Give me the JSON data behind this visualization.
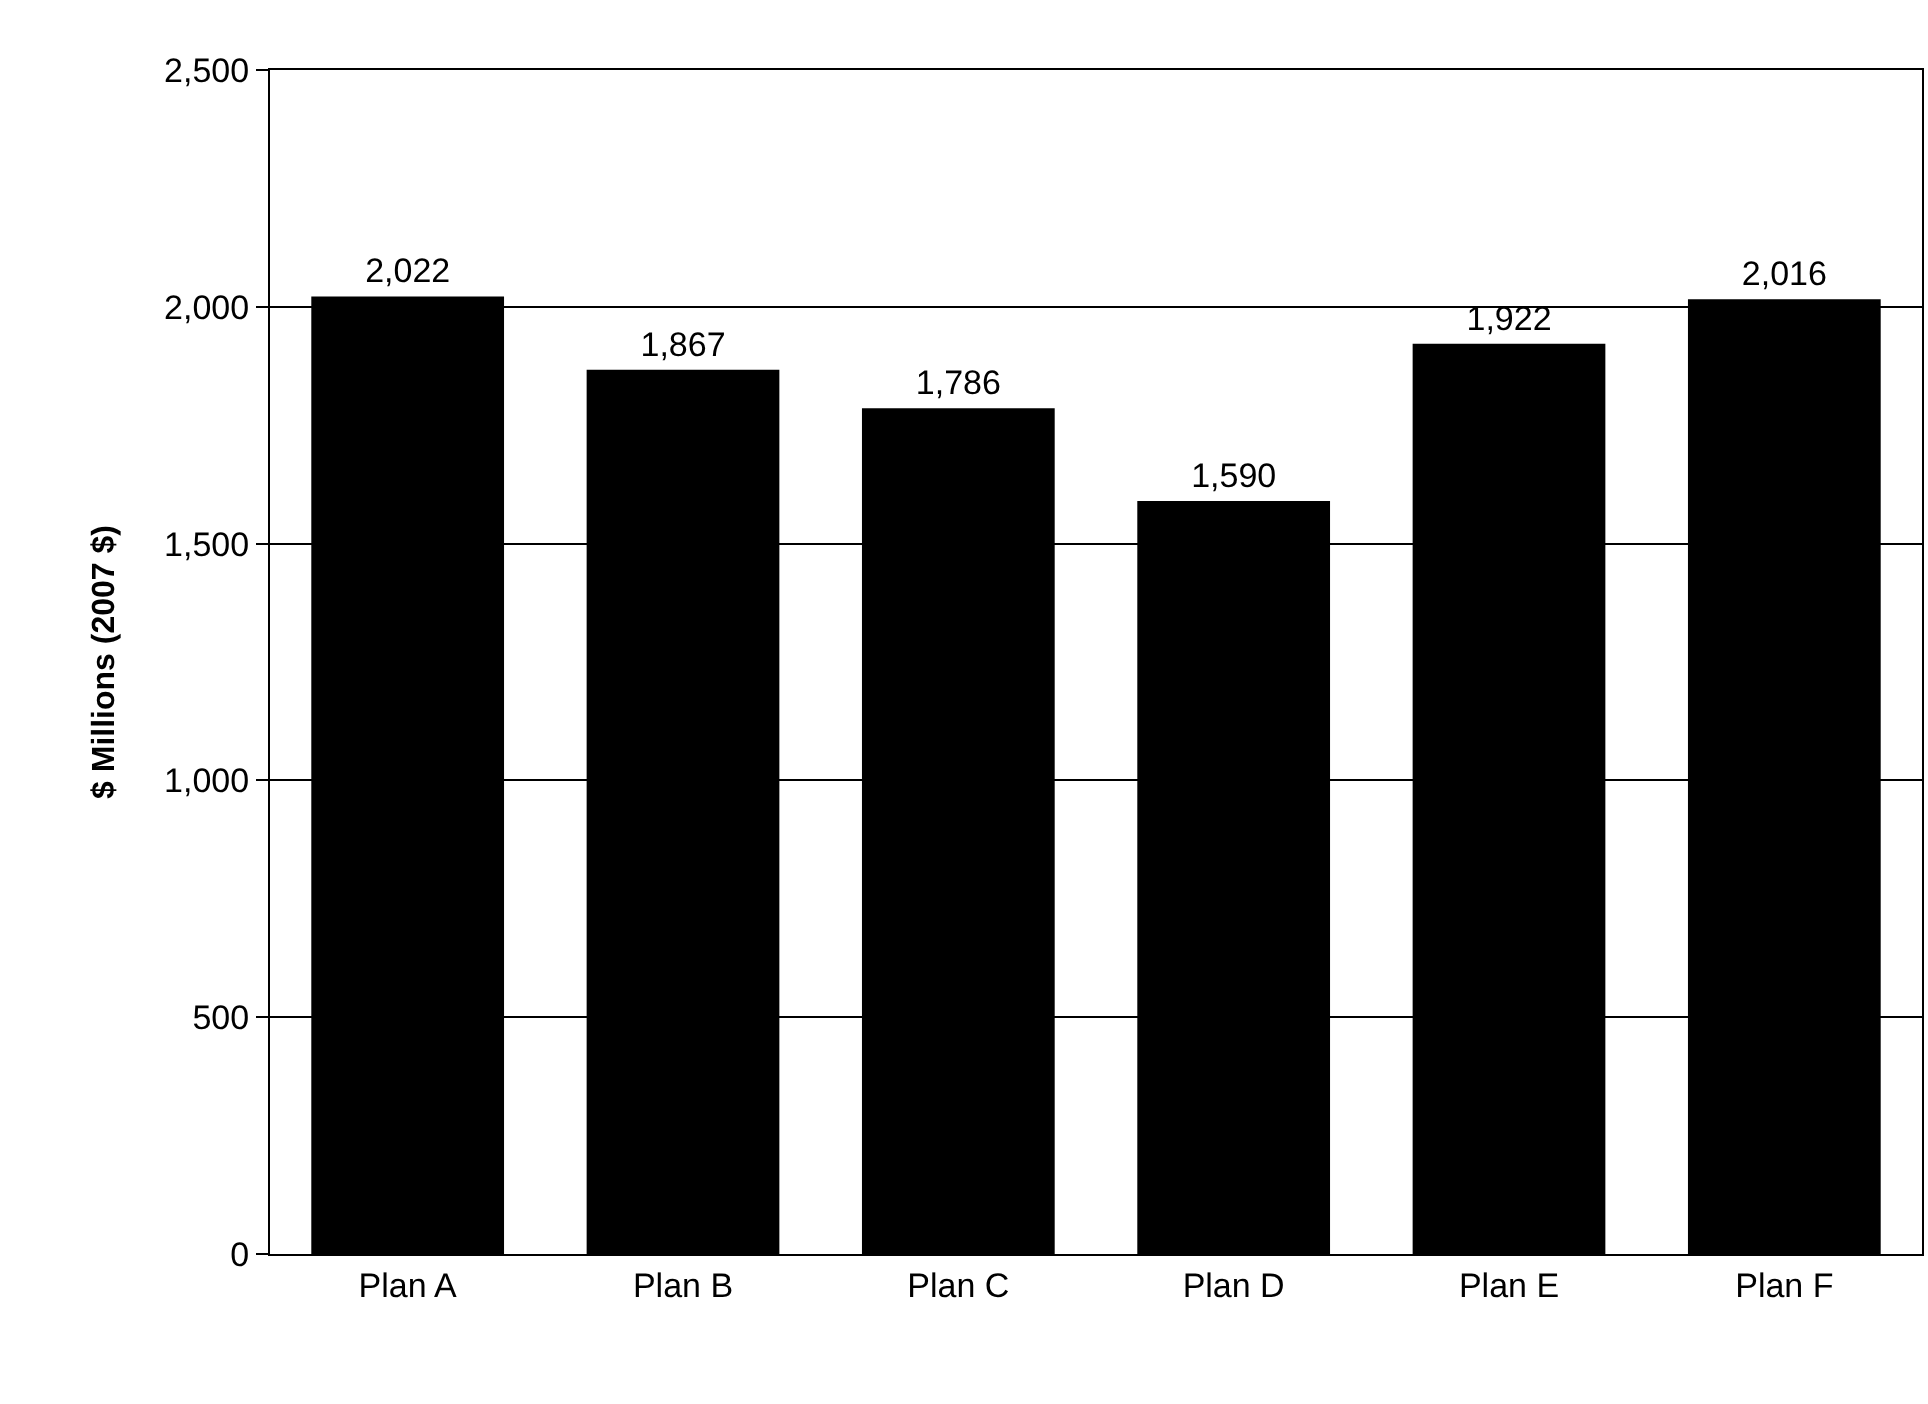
{
  "chart_data": {
    "type": "bar",
    "ylabel": "$ Millions (2007 $)",
    "categories": [
      "Plan A",
      "Plan B",
      "Plan C",
      "Plan D",
      "Plan E",
      "Plan F"
    ],
    "values": [
      2022,
      1867,
      1786,
      1590,
      1922,
      2016
    ],
    "color": "#000000",
    "ylim": [
      0,
      2500
    ],
    "yticks": [
      0,
      500,
      {
        "value": 1000,
        "label": "1,000"
      },
      {
        "value": 1500,
        "label": "1,500"
      },
      {
        "value": 2000,
        "label": "2,000"
      },
      {
        "value": 2500,
        "label": "2,500"
      }
    ],
    "grid": "y",
    "legend": false,
    "value_labels": [
      "2,022",
      "1,867",
      "1,786",
      "1,590",
      "1,922",
      "2,016"
    ]
  }
}
